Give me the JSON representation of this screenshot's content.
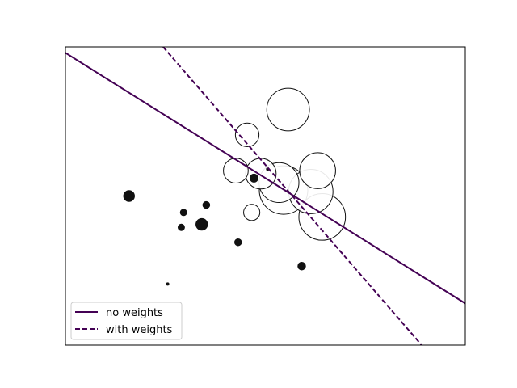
{
  "chart_data": {
    "type": "scatter",
    "title": "",
    "xlabel": "",
    "ylabel": "",
    "xlim": [
      -4.0,
      4.8
    ],
    "ylim": [
      -5.0,
      5.0
    ],
    "axis_ticks_visible": false,
    "grid": false,
    "legend": {
      "placement": "lower-left",
      "entries": [
        {
          "label": "no weights",
          "line_style": "solid"
        },
        {
          "label": "with weights",
          "line_style": "dashed"
        }
      ]
    },
    "colors": {
      "line": "#440154",
      "filled_points": "#111111",
      "open_points": "#111111"
    },
    "decision_boundaries": [
      {
        "name": "no weights",
        "style": "solid",
        "points": [
          [
            -4.0,
            4.8
          ],
          [
            4.8,
            -3.6
          ]
        ]
      },
      {
        "name": "with weights",
        "style": "dashed",
        "points": [
          [
            -1.85,
            5.0
          ],
          [
            3.84,
            -5.0
          ]
        ]
      }
    ],
    "points": [
      {
        "x": -2.6,
        "y": 0.0,
        "class": 0,
        "weight": 20
      },
      {
        "x": -1.4,
        "y": -0.55,
        "class": 0,
        "weight": 7
      },
      {
        "x": -1.0,
        "y": -0.95,
        "class": 0,
        "weight": 23
      },
      {
        "x": -1.45,
        "y": -1.05,
        "class": 0,
        "weight": 7
      },
      {
        "x": -0.9,
        "y": -0.3,
        "class": 0,
        "weight": 8
      },
      {
        "x": -0.2,
        "y": -1.55,
        "class": 0,
        "weight": 8
      },
      {
        "x": 0.15,
        "y": 0.6,
        "class": 0,
        "weight": 11
      },
      {
        "x": 1.2,
        "y": -2.35,
        "class": 0,
        "weight": 10
      },
      {
        "x": -1.75,
        "y": -2.95,
        "class": 0,
        "weight": 1
      },
      {
        "x": 0.45,
        "y": 0.9,
        "class": 0,
        "weight": 1
      },
      {
        "x": 0.9,
        "y": 2.9,
        "class": 1,
        "weight": 310
      },
      {
        "x": 0.0,
        "y": 2.05,
        "class": 1,
        "weight": 95
      },
      {
        "x": -0.25,
        "y": 0.85,
        "class": 1,
        "weight": 105
      },
      {
        "x": 0.3,
        "y": 0.75,
        "class": 1,
        "weight": 160
      },
      {
        "x": 0.7,
        "y": 0.45,
        "class": 1,
        "weight": 270
      },
      {
        "x": 0.8,
        "y": 0.2,
        "class": 1,
        "weight": 400
      },
      {
        "x": 1.55,
        "y": 0.85,
        "class": 1,
        "weight": 220
      },
      {
        "x": 1.4,
        "y": 0.15,
        "class": 1,
        "weight": 335
      },
      {
        "x": 1.65,
        "y": -0.7,
        "class": 1,
        "weight": 370
      },
      {
        "x": 0.1,
        "y": -0.55,
        "class": 1,
        "weight": 45
      }
    ]
  }
}
